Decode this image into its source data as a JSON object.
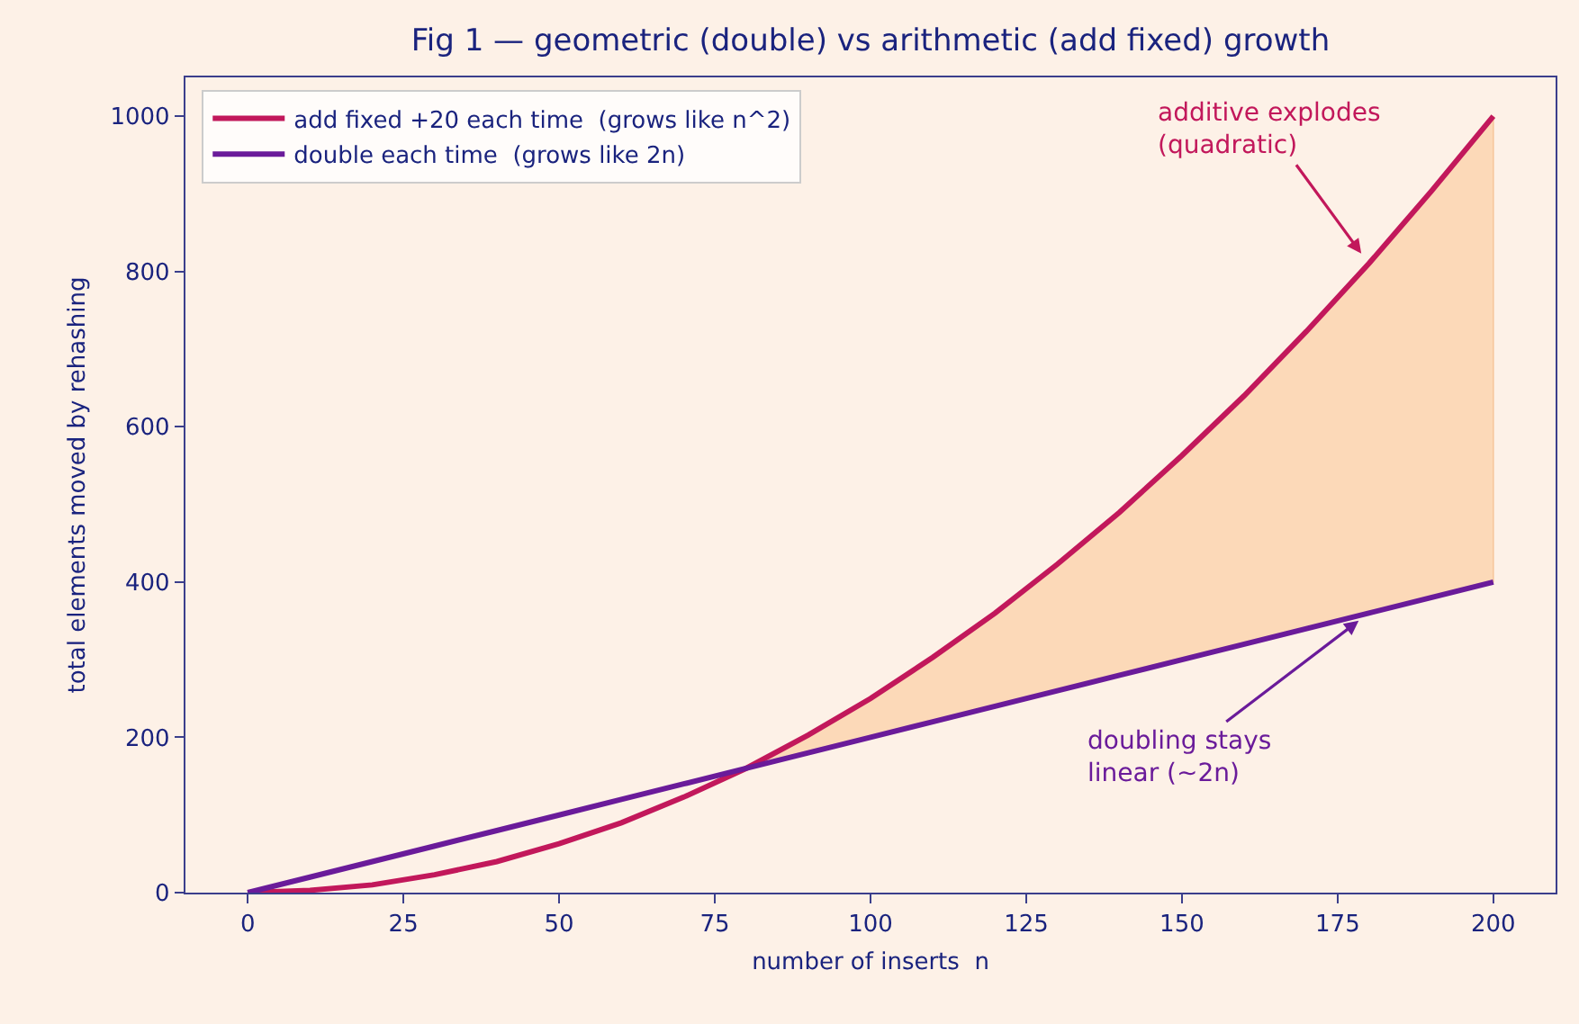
{
  "chart_data": {
    "type": "line",
    "title": "Fig 1 — geometric (double) vs arithmetic (add fixed) growth",
    "xlabel": "number of inserts  n",
    "ylabel": "total elements moved by rehashing",
    "x": [
      0,
      10,
      20,
      30,
      40,
      50,
      60,
      70,
      80,
      90,
      100,
      110,
      120,
      130,
      140,
      150,
      160,
      170,
      180,
      190,
      200
    ],
    "series": [
      {
        "name": "add fixed +20 each time  (grows like n^2)",
        "color": "#c2185b",
        "values": [
          0,
          3,
          10,
          23,
          40,
          63,
          90,
          123,
          160,
          203,
          250,
          303,
          360,
          423,
          490,
          563,
          640,
          723,
          810,
          903,
          1000
        ]
      },
      {
        "name": "double each time  (grows like 2n)",
        "color": "#6a1b9a",
        "values": [
          0,
          20,
          40,
          60,
          80,
          100,
          120,
          140,
          160,
          180,
          200,
          220,
          240,
          260,
          280,
          300,
          320,
          340,
          360,
          380,
          400
        ]
      },
      {
        "color": "#fcd9b8",
        "x": [
          80,
          90,
          100,
          110,
          120,
          130,
          140,
          150,
          160,
          170,
          180,
          190,
          200
        ],
        "values": [
          null,
          null,
          null,
          null,
          null,
          null,
          null,
          null,
          null,
          null,
          null,
          null,
          null
        ],
        "lower": [
          160,
          180,
          200,
          220,
          240,
          260,
          280,
          300,
          320,
          340,
          360,
          380,
          400
        ],
        "upper": [
          160,
          203,
          250,
          303,
          360,
          423,
          490,
          563,
          640,
          723,
          810,
          903,
          1000
        ]
      }
    ],
    "annotations": [
      {
        "text": "additive explodes\n(quadratic)",
        "x": 180,
        "y": 810
      },
      {
        "text": "doubling stays\nlinear (~2n)",
        "x": 180,
        "y": 360
      }
    ],
    "xlim": [
      -10,
      210
    ],
    "xticks": [
      0,
      25,
      50,
      75,
      100,
      125,
      150,
      175,
      200
    ],
    "ylim": [
      0,
      1050
    ],
    "yticks": [
      0,
      200,
      400,
      600,
      800,
      1000
    ],
    "grid": false,
    "legend": "top left",
    "marker": "none",
    "line_style": "solid"
  }
}
